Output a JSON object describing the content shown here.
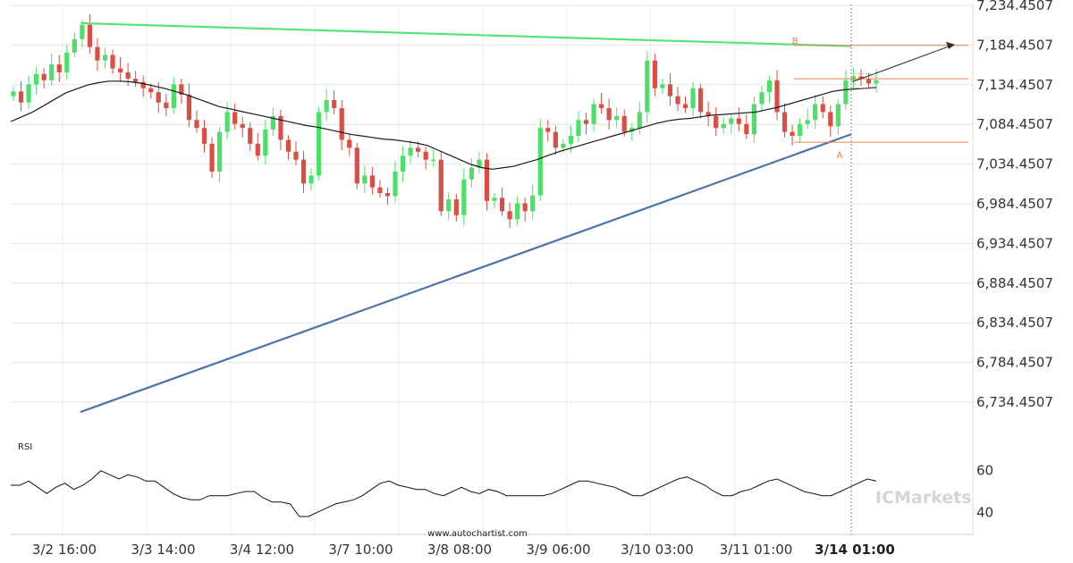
{
  "chart_data": {
    "type": "candlestick",
    "price_ylim": [
      6684.4507,
      7234.4507
    ],
    "y_ticks": [
      "7,234.4507",
      "7,184.4507",
      "7,134.4507",
      "7,084.4507",
      "7,034.4507",
      "6,984.4507",
      "6,934.4507",
      "6,884.4507",
      "6,834.4507",
      "6,784.4507",
      "6,734.4507"
    ],
    "x_ticks": [
      "3/2 16:00",
      "3/3 14:00",
      "3/4 12:00",
      "3/7 10:00",
      "3/8 08:00",
      "3/9 06:00",
      "3/10 03:00",
      "3/11 01:00",
      "3/14 01:00"
    ],
    "x_tick_bar_index": [
      0,
      11,
      22,
      33,
      44,
      55,
      66,
      77,
      88
    ],
    "active_x_tick": "3/14 01:00",
    "candles_close": [
      7126,
      7112,
      7135,
      7148,
      7140,
      7160,
      7150,
      7175,
      7192,
      7210,
      7182,
      7165,
      7172,
      7155,
      7150,
      7142,
      7138,
      7130,
      7125,
      7112,
      7105,
      7135,
      7122,
      7090,
      7080,
      7060,
      7025,
      7075,
      7100,
      7085,
      7080,
      7060,
      7045,
      7078,
      7095,
      7065,
      7050,
      7040,
      7010,
      7020,
      7100,
      7115,
      7105,
      7065,
      7055,
      7010,
      7020,
      7005,
      6998,
      6994,
      7025,
      7045,
      7055,
      7050,
      7040,
      7040,
      6975,
      6990,
      6970,
      7015,
      7030,
      7040,
      6988,
      6992,
      6975,
      6965,
      6985,
      6975,
      6995,
      7080,
      7075,
      7055,
      7060,
      7070,
      7090,
      7085,
      7110,
      7105,
      7090,
      7095,
      7075,
      7080,
      7100,
      7165,
      7130,
      7135,
      7120,
      7110,
      7105,
      7130,
      7100,
      7095,
      7080,
      7085,
      7092,
      7085,
      7072,
      7110,
      7125,
      7140,
      7100,
      7075,
      7070,
      7085,
      7090,
      7110,
      7100,
      7082,
      7110,
      7140,
      7145,
      7142,
      7136,
      7140
    ],
    "moving_average": [
      7088,
      7094,
      7100,
      7108,
      7116,
      7124,
      7129,
      7134,
      7137,
      7139,
      7139,
      7138,
      7136,
      7133,
      7130,
      7126,
      7122,
      7117,
      7112,
      7107,
      7104,
      7101,
      7098,
      7095,
      7092,
      7089,
      7086,
      7083,
      7081,
      7078,
      7075,
      7072,
      7070,
      7068,
      7066,
      7065,
      7063,
      7061,
      7058,
      7052,
      7046,
      7040,
      7034,
      7030,
      7028,
      7030,
      7032,
      7036,
      7040,
      7045,
      7050,
      7054,
      7058,
      7062,
      7066,
      7070,
      7074,
      7078,
      7082,
      7086,
      7089,
      7091,
      7092,
      7094,
      7096,
      7097,
      7098,
      7099,
      7100,
      7103,
      7106,
      7110,
      7114,
      7118,
      7122,
      7126,
      7128,
      7129,
      7130,
      7131
    ],
    "pattern": {
      "name": "Triangle",
      "resistance_line": [
        7212,
        7183
      ],
      "support_line": [
        6722,
        7072
      ],
      "point_A": {
        "label": "A",
        "value": 7062
      },
      "point_B": {
        "label": "B",
        "value": 7184
      },
      "levels": [
        7184,
        7142,
        7062
      ]
    },
    "rsi": {
      "label": "RSI",
      "ylim": [
        32,
        68
      ],
      "ticks": [
        "60",
        "40"
      ],
      "values": [
        53,
        53,
        55,
        52,
        49,
        52,
        54,
        51,
        53,
        56,
        60,
        58,
        56,
        58,
        57,
        55,
        55,
        52,
        49,
        47,
        46,
        46,
        48,
        48,
        48,
        49,
        50,
        50,
        47,
        45,
        45,
        44,
        38,
        38,
        40,
        42,
        44,
        45,
        46,
        48,
        51,
        54,
        55,
        53,
        52,
        51,
        51,
        49,
        48,
        50,
        52,
        50,
        49,
        51,
        50,
        48,
        48,
        48,
        48,
        48,
        49,
        51,
        53,
        55,
        55,
        54,
        53,
        52,
        50,
        48,
        48,
        50,
        52,
        54,
        56,
        57,
        55,
        53,
        50,
        48,
        48,
        50,
        51,
        53,
        55,
        56,
        54,
        52,
        50,
        49,
        48,
        48,
        50,
        52,
        54,
        56,
        55
      ]
    }
  },
  "labels": {
    "rsi": "RSI",
    "website": "www.autochartist.com",
    "brand": "ICMarkets"
  },
  "colors": {
    "up": "#4ede6a",
    "down": "#d94f46",
    "ma": "#1a1a1a",
    "resistance": "#58e37a",
    "support": "#4b73a8",
    "level": "#e8834a",
    "grid": "#e5e5e5",
    "projection": "#2a2a2a"
  }
}
